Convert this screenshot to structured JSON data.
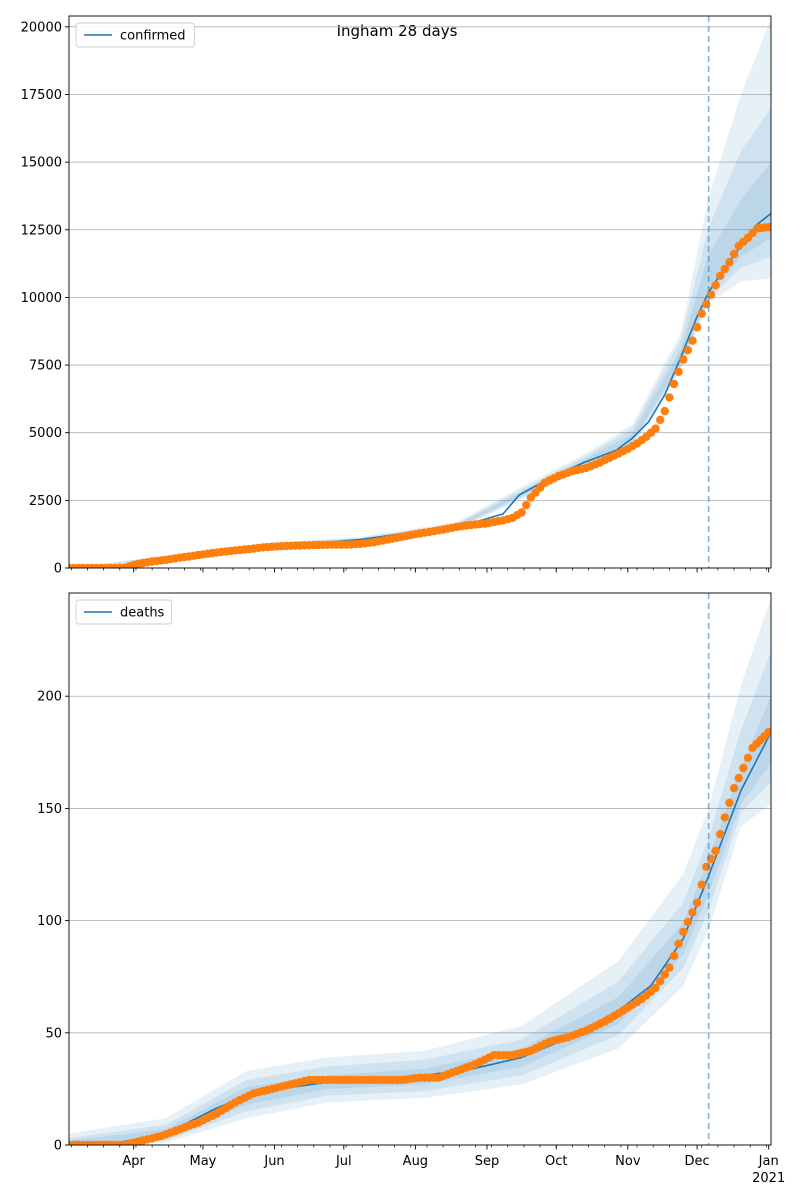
{
  "figure": {
    "title": "Ingham 28 days"
  },
  "chart_data": [
    {
      "type": "line",
      "legend": "confirmed",
      "legend_position": "top-left",
      "grid": "y",
      "x_ticks": [
        "Apr",
        "May",
        "Jun",
        "Jul",
        "Aug",
        "Sep",
        "Oct",
        "Nov",
        "Dec",
        "Jan"
      ],
      "x_tick_sublabel": {
        "Jan": "2021"
      },
      "y_ticks": [
        0,
        2500,
        5000,
        7500,
        10000,
        12500,
        15000,
        17500,
        20000
      ],
      "ylim": [
        0,
        20400
      ],
      "xlim": [
        "2020-03-04",
        "2021-01-02"
      ],
      "forecast_start": "2020-12-06",
      "colors": {
        "model": "#1f77b4",
        "observed": "#ff7f0e",
        "band": "#1f77b4"
      },
      "model": {
        "x": [
          "2020-03-04",
          "2020-03-25",
          "2020-04-15",
          "2020-05-06",
          "2020-05-27",
          "2020-06-17",
          "2020-07-08",
          "2020-07-29",
          "2020-08-19",
          "2020-08-29",
          "2020-09-08",
          "2020-09-15",
          "2020-09-29",
          "2020-10-13",
          "2020-10-27",
          "2020-11-03",
          "2020-11-10",
          "2020-11-17",
          "2020-11-24",
          "2020-12-01",
          "2020-12-06",
          "2020-12-13",
          "2020-12-20",
          "2020-12-27",
          "2021-01-02"
        ],
        "y": [
          0,
          80,
          400,
          650,
          820,
          900,
          1050,
          1300,
          1550,
          1750,
          2000,
          2700,
          3350,
          3900,
          4350,
          4800,
          5400,
          6400,
          7800,
          9300,
          10200,
          11100,
          11900,
          12700,
          13100
        ]
      },
      "bands": [
        {
          "x": [
            "2020-03-04",
            "2020-04-15",
            "2020-05-27",
            "2020-07-08",
            "2020-08-19",
            "2020-09-15",
            "2020-10-13",
            "2020-11-03",
            "2020-11-24",
            "2020-12-06",
            "2020-12-20",
            "2021-01-02"
          ],
          "lower": [
            0,
            350,
            760,
            960,
            1420,
            2500,
            3650,
            4500,
            7300,
            9800,
            10600,
            10700
          ],
          "upper": [
            0,
            460,
            900,
            1150,
            1700,
            2950,
            4200,
            5300,
            8700,
            13700,
            17500,
            20300
          ]
        },
        {
          "x": [
            "2020-03-04",
            "2020-04-15",
            "2020-05-27",
            "2020-07-08",
            "2020-08-19",
            "2020-09-15",
            "2020-10-13",
            "2020-11-03",
            "2020-11-24",
            "2020-12-06",
            "2020-12-20",
            "2021-01-02"
          ],
          "lower": [
            0,
            370,
            780,
            990,
            1460,
            2570,
            3720,
            4580,
            7450,
            9950,
            11100,
            11500
          ],
          "upper": [
            0,
            440,
            870,
            1110,
            1650,
            2860,
            4100,
            5150,
            8450,
            12600,
            15400,
            17000
          ]
        },
        {
          "x": [
            "2020-03-04",
            "2020-04-15",
            "2020-05-27",
            "2020-07-08",
            "2020-08-19",
            "2020-09-15",
            "2020-10-13",
            "2020-11-03",
            "2020-11-24",
            "2020-12-06",
            "2020-12-20",
            "2021-01-02"
          ],
          "lower": [
            0,
            385,
            800,
            1020,
            1500,
            2630,
            3800,
            4680,
            7600,
            10050,
            11500,
            12200
          ],
          "upper": [
            0,
            420,
            845,
            1080,
            1600,
            2770,
            4000,
            4950,
            8100,
            11600,
            13600,
            15000
          ]
        }
      ],
      "observed": {
        "x": [
          "2020-03-04",
          "2020-03-10",
          "2020-03-16",
          "2020-03-22",
          "2020-03-28",
          "2020-04-03",
          "2020-04-09",
          "2020-04-15",
          "2020-04-21",
          "2020-04-27",
          "2020-05-03",
          "2020-05-09",
          "2020-05-15",
          "2020-05-21",
          "2020-05-27",
          "2020-06-02",
          "2020-06-08",
          "2020-06-14",
          "2020-06-20",
          "2020-06-26",
          "2020-07-02",
          "2020-07-08",
          "2020-07-14",
          "2020-07-20",
          "2020-07-26",
          "2020-08-01",
          "2020-08-07",
          "2020-08-13",
          "2020-08-19",
          "2020-08-25",
          "2020-08-31",
          "2020-09-04",
          "2020-09-08",
          "2020-09-12",
          "2020-09-16",
          "2020-09-20",
          "2020-09-26",
          "2020-10-02",
          "2020-10-08",
          "2020-10-14",
          "2020-10-20",
          "2020-10-26",
          "2020-11-01",
          "2020-11-05",
          "2020-11-09",
          "2020-11-13",
          "2020-11-17",
          "2020-11-21",
          "2020-11-25",
          "2020-11-29",
          "2020-12-03",
          "2020-12-07",
          "2020-12-11",
          "2020-12-15",
          "2020-12-19",
          "2020-12-23",
          "2020-12-27",
          "2021-01-01"
        ],
        "y": [
          0,
          0,
          0,
          0,
          20,
          150,
          240,
          300,
          380,
          450,
          530,
          590,
          650,
          700,
          760,
          800,
          820,
          840,
          850,
          860,
          860,
          890,
          950,
          1050,
          1150,
          1250,
          1330,
          1420,
          1520,
          1590,
          1640,
          1700,
          1760,
          1850,
          2050,
          2600,
          3150,
          3400,
          3580,
          3700,
          3900,
          4150,
          4400,
          4600,
          4850,
          5150,
          5800,
          6800,
          7700,
          8400,
          9400,
          10100,
          10800,
          11300,
          11900,
          12200,
          12550,
          12600
        ]
      }
    },
    {
      "type": "line",
      "legend": "deaths",
      "legend_position": "top-left",
      "grid": "y",
      "x_ticks": [
        "Apr",
        "May",
        "Jun",
        "Jul",
        "Aug",
        "Sep",
        "Oct",
        "Nov",
        "Dec",
        "Jan"
      ],
      "x_tick_sublabel": {
        "Jan": "2021"
      },
      "y_ticks": [
        0,
        50,
        100,
        150,
        200
      ],
      "ylim": [
        0,
        246
      ],
      "xlim": [
        "2020-03-04",
        "2021-01-02"
      ],
      "forecast_start": "2020-12-06",
      "colors": {
        "model": "#1f77b4",
        "observed": "#ff7f0e",
        "band": "#1f77b4"
      },
      "model": {
        "x": [
          "2020-03-04",
          "2020-03-25",
          "2020-04-15",
          "2020-05-06",
          "2020-05-20",
          "2020-06-03",
          "2020-06-24",
          "2020-07-15",
          "2020-08-05",
          "2020-08-26",
          "2020-09-16",
          "2020-10-07",
          "2020-10-28",
          "2020-11-11",
          "2020-11-25",
          "2020-12-06",
          "2020-12-20",
          "2021-01-02"
        ],
        "y": [
          0,
          1,
          5,
          16,
          22,
          25,
          28,
          29,
          31,
          34,
          39,
          48,
          60,
          71,
          92,
          120,
          158,
          184
        ]
      },
      "bands": [
        {
          "x": [
            "2020-03-04",
            "2020-04-15",
            "2020-05-20",
            "2020-06-24",
            "2020-08-05",
            "2020-09-16",
            "2020-10-28",
            "2020-11-25",
            "2020-12-06",
            "2020-12-20",
            "2021-01-02"
          ],
          "lower": [
            0,
            1,
            12,
            19,
            21,
            27,
            43,
            71,
            96,
            142,
            152
          ],
          "upper": [
            5,
            12,
            33,
            39,
            42,
            53,
            82,
            121,
            150,
            205,
            244
          ]
        },
        {
          "x": [
            "2020-03-04",
            "2020-04-15",
            "2020-05-20",
            "2020-06-24",
            "2020-08-05",
            "2020-09-16",
            "2020-10-28",
            "2020-11-25",
            "2020-12-06",
            "2020-12-20",
            "2021-01-02"
          ],
          "lower": [
            0,
            2,
            15,
            22,
            24,
            31,
            49,
            79,
            105,
            148,
            162
          ],
          "upper": [
            3,
            9,
            29,
            35,
            38,
            47,
            73,
            108,
            137,
            185,
            220
          ]
        },
        {
          "x": [
            "2020-03-04",
            "2020-04-15",
            "2020-05-20",
            "2020-06-24",
            "2020-08-05",
            "2020-09-16",
            "2020-10-28",
            "2020-11-25",
            "2020-12-06",
            "2020-12-20",
            "2021-01-02"
          ],
          "lower": [
            0,
            3,
            18,
            25,
            27,
            35,
            54,
            85,
            112,
            152,
            170
          ],
          "upper": [
            2,
            7,
            26,
            31,
            34,
            43,
            66,
            99,
            128,
            168,
            200
          ]
        }
      ],
      "observed": {
        "x": [
          "2020-03-04",
          "2020-03-12",
          "2020-03-20",
          "2020-03-28",
          "2020-04-05",
          "2020-04-13",
          "2020-04-21",
          "2020-04-29",
          "2020-05-07",
          "2020-05-15",
          "2020-05-23",
          "2020-05-31",
          "2020-06-08",
          "2020-06-16",
          "2020-06-24",
          "2020-07-02",
          "2020-07-10",
          "2020-07-18",
          "2020-07-26",
          "2020-08-03",
          "2020-08-11",
          "2020-08-19",
          "2020-08-27",
          "2020-09-04",
          "2020-09-12",
          "2020-09-20",
          "2020-09-28",
          "2020-10-06",
          "2020-10-14",
          "2020-10-22",
          "2020-10-30",
          "2020-11-07",
          "2020-11-13",
          "2020-11-19",
          "2020-11-25",
          "2020-12-01",
          "2020-12-05",
          "2020-12-09",
          "2020-12-13",
          "2020-12-17",
          "2020-12-21",
          "2020-12-25",
          "2021-01-01"
        ],
        "y": [
          0,
          0,
          0,
          0,
          2,
          4,
          7,
          10,
          14,
          19,
          23,
          25,
          27,
          29,
          29,
          29,
          29,
          29,
          29,
          30,
          30,
          33,
          36,
          40,
          40,
          42,
          46,
          48,
          51,
          55,
          60,
          65,
          70,
          79,
          95,
          108,
          124,
          131,
          146,
          159,
          168,
          177,
          184
        ]
      }
    }
  ]
}
